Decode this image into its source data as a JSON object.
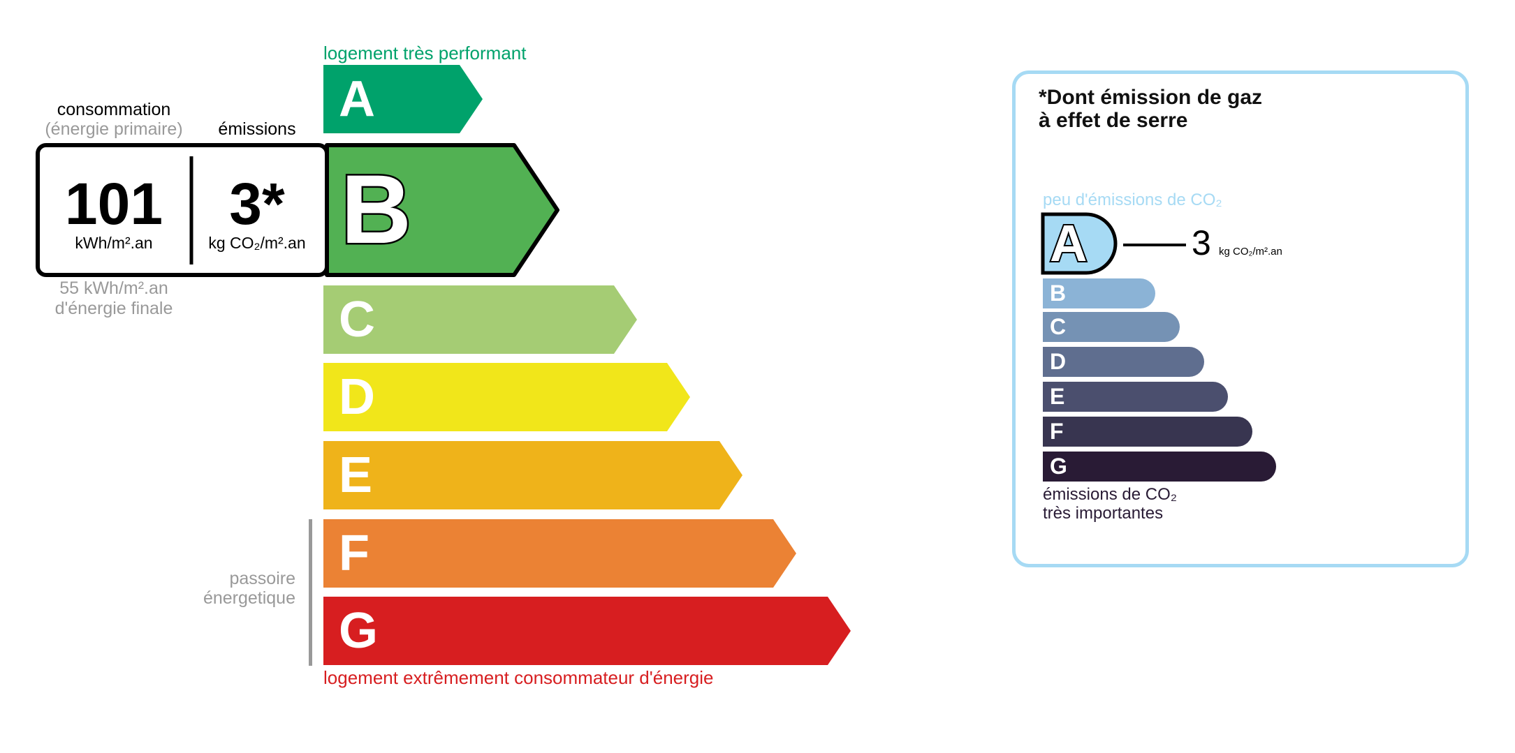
{
  "energy": {
    "top_label": "logement très performant",
    "bottom_label": "logement extrêmement consommateur d'énergie",
    "passoire_label_1": "passoire",
    "passoire_label_2": "énergetique",
    "current_class": "B",
    "classes": [
      {
        "letter": "A",
        "color": "#00a26b"
      },
      {
        "letter": "B",
        "color": "#52b153"
      },
      {
        "letter": "C",
        "color": "#a5cc74"
      },
      {
        "letter": "D",
        "color": "#f1e61a"
      },
      {
        "letter": "E",
        "color": "#efb31a"
      },
      {
        "letter": "F",
        "color": "#eb8234"
      },
      {
        "letter": "G",
        "color": "#d71e20"
      }
    ]
  },
  "values": {
    "consumption_heading": "consommation",
    "consumption_sub": "(énergie primaire)",
    "emissions_heading": "émissions",
    "consumption_value": "101",
    "consumption_unit": "kWh/m².an",
    "emissions_value": "3*",
    "emissions_unit": "kg CO₂/m².an",
    "final_energy_1": "55 kWh/m².an",
    "final_energy_2": "d'énergie finale"
  },
  "ghg": {
    "title_1": "*Dont émission de gaz",
    "title_2": "à effet de serre",
    "top_label": "peu d'émissions de CO₂",
    "bottom_label_1": "émissions de CO₂",
    "bottom_label_2": "très importantes",
    "current_class": "A",
    "value": "3",
    "unit": "kg CO₂/m².an",
    "border_color": "#a6daf4",
    "classes": [
      {
        "letter": "A",
        "color": "#a6daf4"
      },
      {
        "letter": "B",
        "color": "#8bb3d6"
      },
      {
        "letter": "C",
        "color": "#7592b4"
      },
      {
        "letter": "D",
        "color": "#5f6e8f"
      },
      {
        "letter": "E",
        "color": "#4b4f6e"
      },
      {
        "letter": "F",
        "color": "#383550"
      },
      {
        "letter": "G",
        "color": "#291b35"
      }
    ]
  }
}
